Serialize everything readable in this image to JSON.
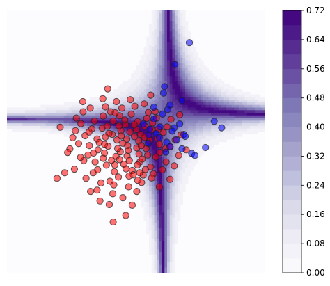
{
  "chart_data": {
    "type": "scatter",
    "subtype": "filled-contour-with-colorbar",
    "axes_visible": false,
    "grid": false,
    "legend": "none",
    "colormap": "Purples",
    "colorbar": {
      "position": "right",
      "vmin": 0.0,
      "vmax": 0.72,
      "tick_labels": [
        "0.00",
        "0.08",
        "0.16",
        "0.24",
        "0.32",
        "0.40",
        "0.48",
        "0.56",
        "0.64",
        "0.72"
      ],
      "levels": [
        0.0,
        0.04,
        0.08,
        0.12,
        0.16,
        0.2,
        0.24,
        0.28,
        0.32,
        0.36,
        0.4,
        0.44,
        0.48,
        0.52,
        0.56,
        0.6,
        0.64,
        0.68,
        0.72
      ]
    },
    "xlim": [
      -4.0,
      4.0
    ],
    "ylim": [
      -4.0,
      4.0
    ],
    "series": [
      {
        "color": "#ff0000",
        "values": [
          [
            -1.62,
            -0.58
          ],
          [
            -1.45,
            -0.12
          ],
          [
            -1.21,
            0.08
          ],
          [
            -0.98,
            -0.35
          ],
          [
            -0.74,
            0.22
          ],
          [
            -0.66,
            -0.71
          ],
          [
            -0.41,
            -0.05
          ],
          [
            -0.28,
            -0.44
          ],
          [
            -0.05,
            0.15
          ],
          [
            0.12,
            -0.62
          ],
          [
            0.31,
            -0.21
          ],
          [
            0.48,
            0.36
          ],
          [
            0.72,
            -0.08
          ],
          [
            -1.88,
            0.33
          ],
          [
            -1.33,
            -0.95
          ],
          [
            -1.05,
            0.41
          ],
          [
            -0.87,
            -0.14
          ],
          [
            -0.55,
            -1.08
          ],
          [
            -0.33,
            0.52
          ],
          [
            -0.12,
            -0.88
          ],
          [
            0.05,
            0.61
          ],
          [
            0.22,
            -1.02
          ],
          [
            0.39,
            0.18
          ],
          [
            0.61,
            -0.47
          ],
          [
            0.84,
            0.28
          ],
          [
            1.05,
            -0.16
          ],
          [
            -2.05,
            -0.22
          ],
          [
            -1.71,
            0.55
          ],
          [
            -1.49,
            -0.41
          ],
          [
            -1.14,
            -0.03
          ],
          [
            -0.92,
            -0.72
          ],
          [
            -0.71,
            0.63
          ],
          [
            -0.49,
            -0.31
          ],
          [
            -0.19,
            0.29
          ],
          [
            0.02,
            -0.19
          ],
          [
            0.27,
            0.47
          ],
          [
            0.45,
            -0.77
          ],
          [
            0.66,
            0.11
          ],
          [
            0.93,
            -0.62
          ],
          [
            1.21,
            0.05
          ],
          [
            -1.58,
            0.18
          ],
          [
            -1.27,
            -0.62
          ],
          [
            -1.02,
            0.78
          ],
          [
            -0.81,
            -1.21
          ],
          [
            -0.59,
            0.05
          ],
          [
            -0.38,
            -0.69
          ],
          [
            -0.15,
            0.84
          ],
          [
            0.09,
            -0.38
          ],
          [
            0.33,
            0.71
          ],
          [
            0.54,
            -0.98
          ],
          [
            -1.91,
            -0.84
          ],
          [
            -1.64,
            0.91
          ],
          [
            -1.37,
            0.39
          ],
          [
            -1.09,
            -1.26
          ],
          [
            -0.84,
            0.25
          ],
          [
            -0.62,
            -0.45
          ],
          [
            -0.44,
            1.02
          ],
          [
            -0.23,
            -1.38
          ],
          [
            0.01,
            0.37
          ],
          [
            0.19,
            -0.53
          ],
          [
            -1.21,
            -1.48
          ],
          [
            -0.95,
            1.06
          ],
          [
            -0.72,
            -1.59
          ],
          [
            -0.51,
            0.79
          ],
          [
            -0.26,
            -0.12
          ],
          [
            -0.04,
            1.08
          ],
          [
            0.17,
            -1.25
          ],
          [
            0.42,
            0.02
          ],
          [
            0.63,
            0.72
          ],
          [
            0.81,
            -0.86
          ],
          [
            -2.35,
            0.44
          ],
          [
            -2.12,
            -0.33
          ],
          [
            -1.78,
            -0.06
          ],
          [
            -1.42,
            1.02
          ],
          [
            -1.18,
            -0.25
          ],
          [
            -0.89,
            0.47
          ],
          [
            -0.67,
            -0.92
          ],
          [
            -0.47,
            0.33
          ],
          [
            -0.21,
            -0.58
          ],
          [
            0.08,
            0.02
          ],
          [
            0.29,
            -0.85
          ],
          [
            0.51,
            0.57
          ],
          [
            0.74,
            -0.33
          ],
          [
            0.96,
            0.45
          ],
          [
            1.18,
            -0.74
          ],
          [
            1.39,
            0.21
          ],
          [
            -1.55,
            -1.12
          ],
          [
            -1.29,
            0.63
          ],
          [
            -1.02,
            -0.51
          ],
          [
            -0.79,
            0.91
          ],
          [
            -0.57,
            -0.21
          ],
          [
            -0.35,
            0.66
          ],
          [
            -0.09,
            -1.01
          ],
          [
            0.14,
            0.22
          ],
          [
            0.36,
            -0.41
          ],
          [
            0.59,
            0.92
          ],
          [
            -0.98,
            -0.08
          ],
          [
            -0.76,
            -0.57
          ],
          [
            -0.53,
            0.48
          ],
          [
            -0.31,
            -0.83
          ],
          [
            -0.06,
            0.51
          ],
          [
            0.16,
            -0.12
          ],
          [
            0.38,
            0.89
          ],
          [
            -1.72,
            -0.48
          ],
          [
            -1.46,
            0.29
          ],
          [
            -1.19,
            -0.86
          ],
          [
            -0.95,
            0.14
          ],
          [
            -0.69,
            -1.32
          ],
          [
            -0.46,
            0.17
          ],
          [
            -0.24,
            -0.27
          ],
          [
            0.04,
            -0.71
          ],
          [
            0.26,
            0.13
          ],
          [
            0.48,
            -1.11
          ],
          [
            0.69,
            0.38
          ],
          [
            0.91,
            -0.21
          ],
          [
            -2.21,
            -0.95
          ],
          [
            -1.96,
            0.12
          ],
          [
            -1.03,
            1.31
          ],
          [
            -0.61,
            1.22
          ],
          [
            -0.18,
            1.28
          ],
          [
            0.25,
            1.15
          ],
          [
            -0.83,
            -1.92
          ],
          [
            -0.41,
            -1.71
          ],
          [
            0.02,
            -1.52
          ],
          [
            -1.41,
            -1.52
          ],
          [
            0.72,
            -1.38
          ],
          [
            1.05,
            -1.15
          ],
          [
            1.32,
            -0.42
          ],
          [
            1.55,
            -0.25
          ],
          [
            -2.45,
            -1.12
          ],
          [
            -0.32,
            -2.25
          ],
          [
            -0.12,
            -1.94
          ],
          [
            -0.71,
            -2.45
          ],
          [
            -1.12,
            -1.81
          ],
          [
            0.45,
            1.42
          ],
          [
            -0.88,
            1.61
          ],
          [
            -1.65,
            1.22
          ],
          [
            -0.22,
            -1.05
          ],
          [
            0.11,
            -0.95
          ],
          [
            -0.65,
            0.88
          ],
          [
            -1.32,
            -0.35
          ],
          [
            -0.51,
            -0.55
          ],
          [
            -0.29,
            0.08
          ],
          [
            1.08,
            0.68
          ],
          [
            1.35,
            0.82
          ],
          [
            -1.85,
            0.72
          ],
          [
            0.05,
            -1.18
          ]
        ]
      },
      {
        "color": "#0000ff",
        "values": [
          [
            1.65,
            3.02
          ],
          [
            1.2,
            2.35
          ],
          [
            0.98,
            0.98
          ],
          [
            0.55,
            0.69
          ],
          [
            0.22,
            0.54
          ],
          [
            0.62,
            0.25
          ],
          [
            0.95,
            -0.02
          ],
          [
            1.18,
            0.42
          ],
          [
            1.42,
            -0.22
          ],
          [
            1.48,
            0.22
          ],
          [
            1.72,
            -0.36
          ],
          [
            1.05,
            -0.15
          ],
          [
            0.72,
            0.12
          ],
          [
            0.38,
            -0.05
          ],
          [
            1.35,
            0.54
          ],
          [
            0.82,
            0.84
          ],
          [
            2.15,
            -0.18
          ],
          [
            2.42,
            0.62
          ],
          [
            1.42,
            1.25
          ],
          [
            0.39,
            0.21
          ],
          [
            0.85,
            1.48
          ],
          [
            1.05,
            1.12
          ],
          [
            0.88,
            1.68
          ],
          [
            0.55,
            1.05
          ],
          [
            1.25,
            0.05
          ],
          [
            2.65,
            0.42
          ],
          [
            0.92,
            -0.32
          ],
          [
            1.12,
            0.32
          ],
          [
            1.82,
            -0.42
          ],
          [
            0.42,
            0.38
          ],
          [
            0.74,
            0.45
          ],
          [
            1.52,
            0.16
          ]
        ]
      }
    ]
  }
}
